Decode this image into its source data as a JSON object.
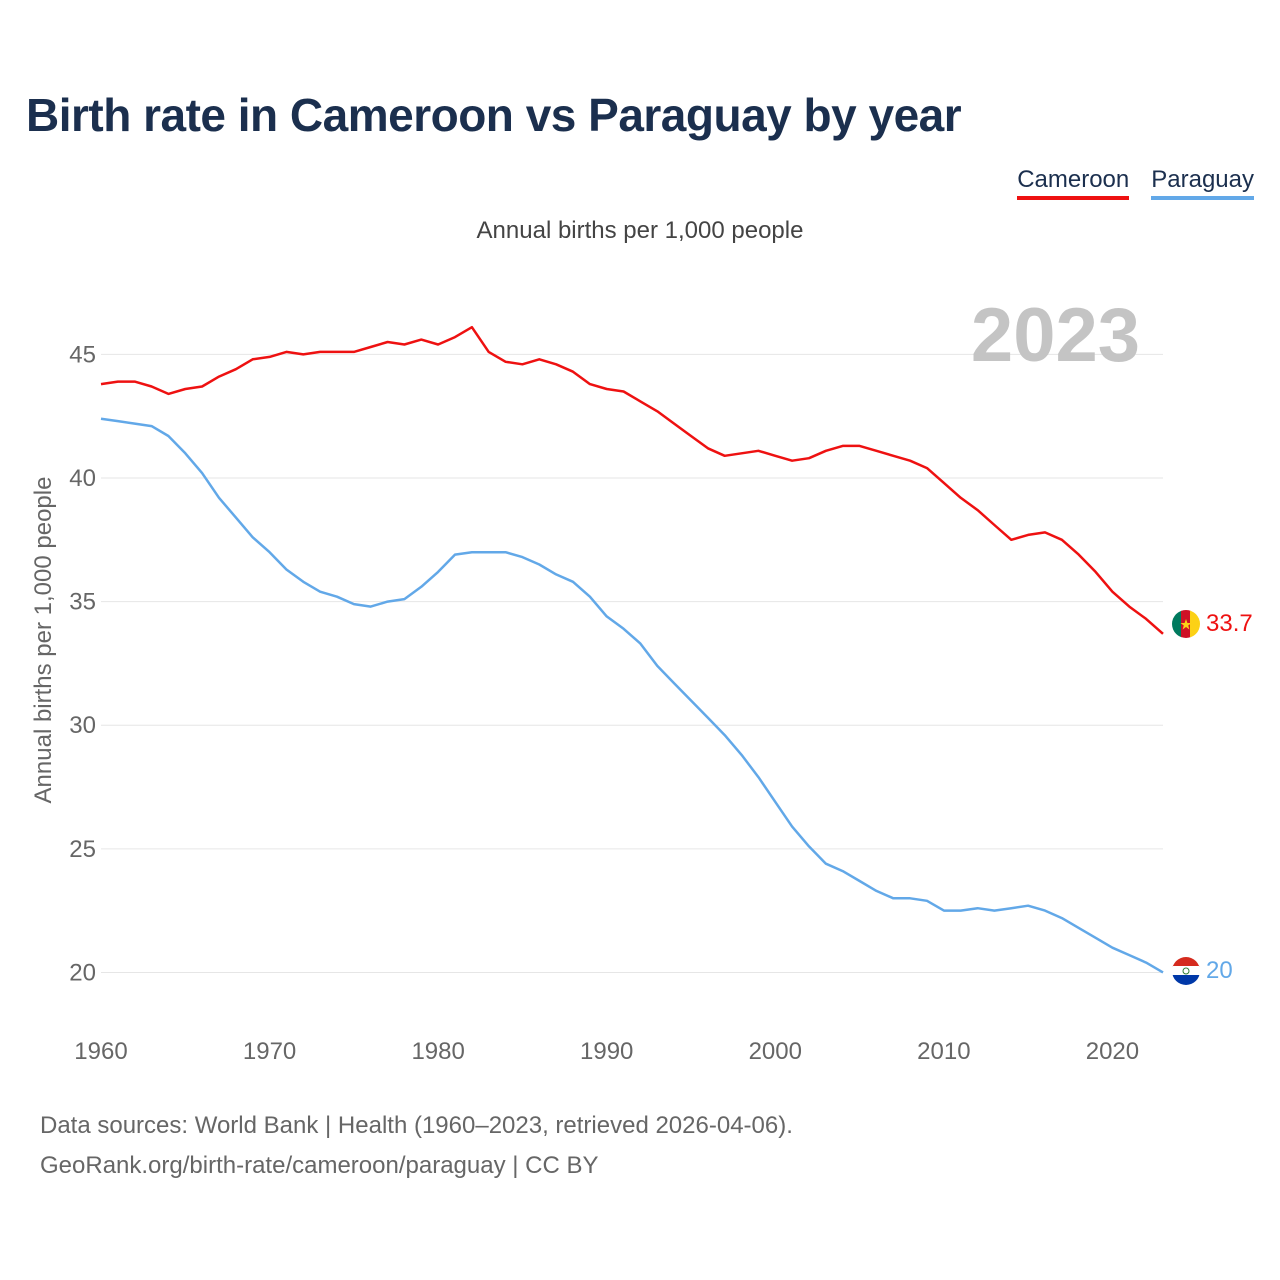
{
  "title": "Birth rate in Cameroon vs Paraguay by year",
  "legend": {
    "cameroon": "Cameroon",
    "paraguay": "Paraguay"
  },
  "colors": {
    "cameroon": "#ee1111",
    "paraguay": "#62a8e8",
    "grid": "#e6e6e6",
    "tick": "#666666",
    "year": "#c4c4c4"
  },
  "source": {
    "line1": "Data sources: World Bank | Health (1960–2023, retrieved 2026-04-06).",
    "line2": "GeoRank.org/birth-rate/cameroon/paraguay | CC BY"
  },
  "chart_data": {
    "type": "line",
    "title": "Birth rate in Cameroon vs Paraguay by year",
    "subtitle": "Annual births per 1,000 people",
    "xlabel": "",
    "ylabel": "Annual births per 1,000 people",
    "year_label": "2023",
    "xlim": [
      1960,
      2023
    ],
    "ylim": [
      18.4,
      47.2
    ],
    "x_ticks": [
      1960,
      1970,
      1980,
      1990,
      2000,
      2010,
      2020
    ],
    "y_ticks": [
      20,
      25,
      30,
      35,
      40,
      45
    ],
    "x": [
      1960,
      1961,
      1962,
      1963,
      1964,
      1965,
      1966,
      1967,
      1968,
      1969,
      1970,
      1971,
      1972,
      1973,
      1974,
      1975,
      1976,
      1977,
      1978,
      1979,
      1980,
      1981,
      1982,
      1983,
      1984,
      1985,
      1986,
      1987,
      1988,
      1989,
      1990,
      1991,
      1992,
      1993,
      1994,
      1995,
      1996,
      1997,
      1998,
      1999,
      2000,
      2001,
      2002,
      2003,
      2004,
      2005,
      2006,
      2007,
      2008,
      2009,
      2010,
      2011,
      2012,
      2013,
      2014,
      2015,
      2016,
      2017,
      2018,
      2019,
      2020,
      2021,
      2022,
      2023
    ],
    "series": [
      {
        "name": "Cameroon",
        "end_label": "33.7",
        "values": [
          43.8,
          43.9,
          43.9,
          43.7,
          43.4,
          43.6,
          43.7,
          44.1,
          44.4,
          44.8,
          44.9,
          45.1,
          45.0,
          45.1,
          45.1,
          45.1,
          45.3,
          45.5,
          45.4,
          45.6,
          45.4,
          45.7,
          46.1,
          45.1,
          44.7,
          44.6,
          44.8,
          44.6,
          44.3,
          43.8,
          43.6,
          43.5,
          43.1,
          42.7,
          42.2,
          41.7,
          41.2,
          40.9,
          41.0,
          41.1,
          40.9,
          40.7,
          40.8,
          41.1,
          41.3,
          41.3,
          41.1,
          40.9,
          40.7,
          40.4,
          39.8,
          39.2,
          38.7,
          38.1,
          37.5,
          37.7,
          37.8,
          37.5,
          36.9,
          36.2,
          35.4,
          34.8,
          34.3,
          33.7
        ]
      },
      {
        "name": "Paraguay",
        "end_label": "20",
        "values": [
          42.4,
          42.3,
          42.2,
          42.1,
          41.7,
          41.0,
          40.2,
          39.2,
          38.4,
          37.6,
          37.0,
          36.3,
          35.8,
          35.4,
          35.2,
          34.9,
          34.8,
          35.0,
          35.1,
          35.6,
          36.2,
          36.9,
          37.0,
          37.0,
          37.0,
          36.8,
          36.5,
          36.1,
          35.8,
          35.2,
          34.4,
          33.9,
          33.3,
          32.4,
          31.7,
          31.0,
          30.3,
          29.6,
          28.8,
          27.9,
          26.9,
          25.9,
          25.1,
          24.4,
          24.1,
          23.7,
          23.3,
          23.0,
          23.0,
          22.9,
          22.5,
          22.5,
          22.6,
          22.5,
          22.6,
          22.7,
          22.5,
          22.2,
          21.8,
          21.4,
          21.0,
          20.7,
          20.4,
          20.0
        ]
      }
    ]
  }
}
